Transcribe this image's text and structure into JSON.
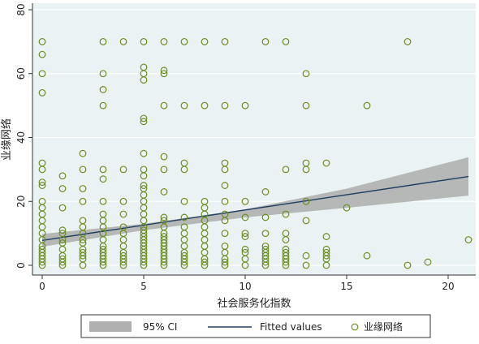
{
  "chart_data": {
    "type": "scatter",
    "xlabel": "社会服务化指数",
    "ylabel": "业缘网络",
    "xlim": [
      0,
      21
    ],
    "ylim": [
      0,
      80
    ],
    "x_ticks": [
      0,
      5,
      10,
      15,
      20
    ],
    "y_ticks": [
      0,
      20,
      40,
      60,
      80
    ],
    "grid": "horizontal",
    "legend_position": "bottom",
    "legend": [
      "95% CI",
      "Fitted values",
      "业缘网络"
    ],
    "colors": {
      "points": "#6b8e23",
      "fit_line": "#1f3f5f",
      "ci_band": "#b0b0b0",
      "plot_bg": "#eaf2f3"
    },
    "fitted_line": {
      "x": [
        0,
        21
      ],
      "y": [
        7.8,
        27.8
      ]
    },
    "ci_band": {
      "x": [
        0,
        5,
        10,
        15,
        21
      ],
      "lower": [
        5.8,
        11.0,
        15.0,
        18.0,
        21.8
      ],
      "upper": [
        9.8,
        13.0,
        17.5,
        24.0,
        33.8
      ]
    },
    "points": [
      [
        0,
        70
      ],
      [
        0,
        66
      ],
      [
        0,
        60
      ],
      [
        0,
        54
      ],
      [
        0,
        32
      ],
      [
        0,
        30
      ],
      [
        0,
        26
      ],
      [
        0,
        25
      ],
      [
        0,
        20
      ],
      [
        0,
        18
      ],
      [
        0,
        16
      ],
      [
        0,
        14
      ],
      [
        0,
        12
      ],
      [
        0,
        10
      ],
      [
        0,
        8
      ],
      [
        0,
        6
      ],
      [
        0,
        5
      ],
      [
        0,
        4
      ],
      [
        0,
        3
      ],
      [
        0,
        2
      ],
      [
        0,
        1
      ],
      [
        0,
        0
      ],
      [
        1,
        28
      ],
      [
        1,
        24
      ],
      [
        1,
        18
      ],
      [
        1,
        11
      ],
      [
        1,
        10
      ],
      [
        1,
        8
      ],
      [
        1,
        7
      ],
      [
        1,
        5
      ],
      [
        1,
        3
      ],
      [
        1,
        2
      ],
      [
        1,
        1
      ],
      [
        1,
        0
      ],
      [
        2,
        35
      ],
      [
        2,
        30
      ],
      [
        2,
        24
      ],
      [
        2,
        20
      ],
      [
        2,
        14
      ],
      [
        2,
        12
      ],
      [
        2,
        10
      ],
      [
        2,
        8
      ],
      [
        2,
        7
      ],
      [
        2,
        5
      ],
      [
        2,
        4
      ],
      [
        2,
        3
      ],
      [
        2,
        2
      ],
      [
        2,
        0
      ],
      [
        3,
        70
      ],
      [
        3,
        60
      ],
      [
        3,
        55
      ],
      [
        3,
        50
      ],
      [
        3,
        30
      ],
      [
        3,
        27
      ],
      [
        3,
        20
      ],
      [
        3,
        16
      ],
      [
        3,
        14
      ],
      [
        3,
        12
      ],
      [
        3,
        10
      ],
      [
        3,
        8
      ],
      [
        3,
        6
      ],
      [
        3,
        5
      ],
      [
        3,
        4
      ],
      [
        3,
        3
      ],
      [
        3,
        2
      ],
      [
        3,
        1
      ],
      [
        3,
        0
      ],
      [
        4,
        70
      ],
      [
        4,
        30
      ],
      [
        4,
        20
      ],
      [
        4,
        16
      ],
      [
        4,
        12
      ],
      [
        4,
        10
      ],
      [
        4,
        8
      ],
      [
        4,
        6
      ],
      [
        4,
        4
      ],
      [
        4,
        3
      ],
      [
        4,
        2
      ],
      [
        4,
        1
      ],
      [
        4,
        0
      ],
      [
        5,
        70
      ],
      [
        5,
        62
      ],
      [
        5,
        60
      ],
      [
        5,
        58
      ],
      [
        5,
        46
      ],
      [
        5,
        45
      ],
      [
        5,
        35
      ],
      [
        5,
        30
      ],
      [
        5,
        28
      ],
      [
        5,
        25
      ],
      [
        5,
        24
      ],
      [
        5,
        22
      ],
      [
        5,
        20
      ],
      [
        5,
        18
      ],
      [
        5,
        16
      ],
      [
        5,
        14
      ],
      [
        5,
        12
      ],
      [
        5,
        11
      ],
      [
        5,
        10
      ],
      [
        5,
        9
      ],
      [
        5,
        8
      ],
      [
        5,
        7
      ],
      [
        5,
        6
      ],
      [
        5,
        5
      ],
      [
        5,
        4
      ],
      [
        5,
        3
      ],
      [
        5,
        2
      ],
      [
        5,
        1
      ],
      [
        5,
        0
      ],
      [
        6,
        70
      ],
      [
        6,
        61
      ],
      [
        6,
        60
      ],
      [
        6,
        50
      ],
      [
        6,
        34
      ],
      [
        6,
        30
      ],
      [
        6,
        23
      ],
      [
        6,
        15
      ],
      [
        6,
        14
      ],
      [
        6,
        12
      ],
      [
        6,
        10
      ],
      [
        6,
        9
      ],
      [
        6,
        8
      ],
      [
        6,
        7
      ],
      [
        6,
        6
      ],
      [
        6,
        5
      ],
      [
        6,
        4
      ],
      [
        6,
        3
      ],
      [
        6,
        2
      ],
      [
        6,
        1
      ],
      [
        6,
        0
      ],
      [
        7,
        70
      ],
      [
        7,
        50
      ],
      [
        7,
        32
      ],
      [
        7,
        30
      ],
      [
        7,
        20
      ],
      [
        7,
        15
      ],
      [
        7,
        12
      ],
      [
        7,
        10
      ],
      [
        7,
        8
      ],
      [
        7,
        6
      ],
      [
        7,
        4
      ],
      [
        7,
        3
      ],
      [
        7,
        2
      ],
      [
        7,
        1
      ],
      [
        7,
        0
      ],
      [
        8,
        70
      ],
      [
        8,
        50
      ],
      [
        8,
        20
      ],
      [
        8,
        18
      ],
      [
        8,
        16
      ],
      [
        8,
        14
      ],
      [
        8,
        12
      ],
      [
        8,
        10
      ],
      [
        8,
        8
      ],
      [
        8,
        6
      ],
      [
        8,
        4
      ],
      [
        8,
        2
      ],
      [
        8,
        1
      ],
      [
        8,
        0
      ],
      [
        9,
        70
      ],
      [
        9,
        50
      ],
      [
        9,
        32
      ],
      [
        9,
        30
      ],
      [
        9,
        25
      ],
      [
        9,
        20
      ],
      [
        9,
        16
      ],
      [
        9,
        14
      ],
      [
        9,
        10
      ],
      [
        9,
        6
      ],
      [
        9,
        4
      ],
      [
        9,
        2
      ],
      [
        9,
        1
      ],
      [
        9,
        0
      ],
      [
        10,
        50
      ],
      [
        10,
        20
      ],
      [
        10,
        15
      ],
      [
        10,
        10
      ],
      [
        10,
        9
      ],
      [
        10,
        5
      ],
      [
        10,
        4
      ],
      [
        10,
        2
      ],
      [
        10,
        0
      ],
      [
        11,
        70
      ],
      [
        11,
        23
      ],
      [
        11,
        15
      ],
      [
        11,
        10
      ],
      [
        11,
        6
      ],
      [
        11,
        5
      ],
      [
        11,
        4
      ],
      [
        11,
        3
      ],
      [
        11,
        2
      ],
      [
        11,
        1
      ],
      [
        11,
        0
      ],
      [
        12,
        70
      ],
      [
        12,
        30
      ],
      [
        12,
        16
      ],
      [
        12,
        10
      ],
      [
        12,
        8
      ],
      [
        12,
        5
      ],
      [
        12,
        4
      ],
      [
        12,
        3
      ],
      [
        12,
        2
      ],
      [
        12,
        1
      ],
      [
        12,
        0
      ],
      [
        13,
        60
      ],
      [
        13,
        50
      ],
      [
        13,
        32
      ],
      [
        13,
        30
      ],
      [
        13,
        20
      ],
      [
        13,
        14
      ],
      [
        13,
        3
      ],
      [
        13,
        0
      ],
      [
        14,
        32
      ],
      [
        14,
        9
      ],
      [
        14,
        5
      ],
      [
        14,
        4
      ],
      [
        14,
        3
      ],
      [
        14,
        2
      ],
      [
        14,
        0
      ],
      [
        15,
        18
      ],
      [
        16,
        50
      ],
      [
        16,
        3
      ],
      [
        18,
        70
      ],
      [
        18,
        0
      ],
      [
        19,
        1
      ],
      [
        21,
        8
      ]
    ]
  }
}
